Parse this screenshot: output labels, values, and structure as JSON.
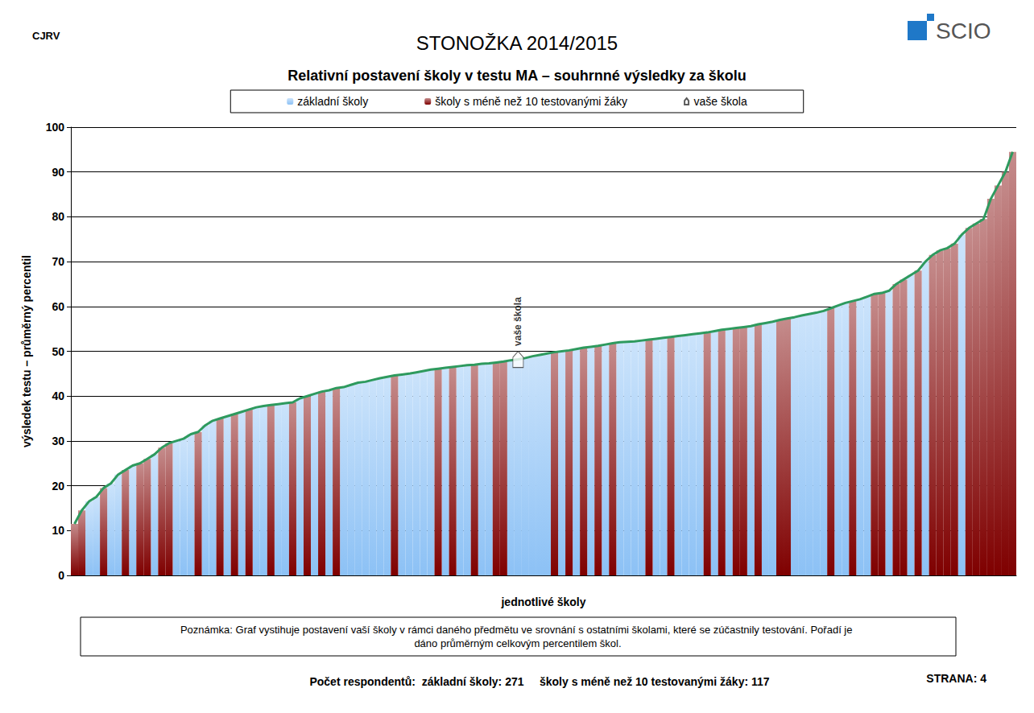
{
  "chart_data": {
    "type": "bar",
    "title": "STONOŽKA 2014/2015",
    "subtitle": "Relativní postavení školy v testu MA – souhrnné výsledky za školu",
    "corner_label": "CJRV",
    "logo": "SCIO",
    "y_label": "výsledek testu – průměrný percentil",
    "x_label": "jednotlivé školy",
    "annotation": "vaše škola",
    "note": "Poznámka: Graf vystihuje postavení vaší školy v rámci daného předmětu ve srovnání s ostatními školami, které se zúčastnily testování. Pořadí je dáno průměrným celkovým percentilem škol.",
    "footer": "Počet respondentů:  základní školy: 271     školy s méně než 10 testovanými žáky: 117",
    "page": "STRANA: 4",
    "ylim": [
      0,
      100
    ],
    "yticks": [
      0,
      10,
      20,
      30,
      40,
      50,
      60,
      70,
      80,
      90,
      100
    ],
    "grid": true,
    "legend": "top",
    "tick_labels": "y",
    "categories": [
      null,
      null,
      null,
      null,
      null,
      null,
      null,
      null,
      null,
      null,
      null,
      null,
      null,
      null,
      null,
      null,
      null,
      null,
      null,
      null,
      null,
      null,
      null,
      null,
      null,
      null,
      null,
      null,
      null,
      null,
      null,
      null,
      null,
      null,
      null,
      null,
      null,
      null,
      null,
      null,
      null,
      null,
      null,
      null,
      null,
      null,
      null,
      null,
      null,
      null,
      null,
      null,
      null,
      null,
      null,
      null,
      null,
      null,
      null,
      null,
      null,
      null,
      null,
      null,
      null,
      null,
      null,
      null,
      null,
      null,
      null,
      null,
      null,
      null,
      null,
      null,
      null,
      null,
      null,
      null,
      null,
      null,
      null,
      null,
      null,
      null,
      null,
      null,
      null,
      null,
      null,
      null,
      null,
      null,
      null,
      null,
      null,
      null,
      null,
      null,
      null,
      null,
      null,
      null,
      null,
      null,
      null,
      null,
      null,
      null,
      null,
      null,
      null,
      null,
      null,
      null,
      null,
      null,
      null,
      null,
      null,
      null,
      null,
      null,
      null,
      null,
      null,
      null,
      null,
      null
    ],
    "series": [
      {
        "name": "základní školy",
        "type": "bar",
        "color": "#8cc1f5",
        "values": [
          null,
          null,
          16.5,
          17.5,
          null,
          20.5,
          22.5,
          null,
          24.5,
          null,
          null,
          27,
          null,
          null,
          30,
          30.5,
          31.5,
          null,
          33.5,
          34.5,
          null,
          35.5,
          null,
          36.5,
          null,
          37.5,
          37.8,
          null,
          38.2,
          38.4,
          null,
          39.5,
          null,
          40.5,
          null,
          41.3,
          null,
          42,
          42.5,
          43,
          43.2,
          43.6,
          44,
          44.3,
          null,
          44.8,
          45,
          45.3,
          45.6,
          45.9,
          null,
          46.3,
          null,
          46.7,
          46.9,
          null,
          47.2,
          47.3,
          null,
          null,
          48,
          48.2,
          48.5,
          48.9,
          49.2,
          49.5,
          null,
          50,
          null,
          50.5,
          null,
          51,
          null,
          51.5,
          null,
          52,
          52.1,
          52.2,
          52.4,
          null,
          52.8,
          53,
          null,
          53.4,
          53.6,
          53.8,
          54,
          null,
          54.5,
          null,
          55,
          null,
          null,
          55.6,
          null,
          56.3,
          56.6,
          null,
          null,
          57.6,
          58,
          58.3,
          58.6,
          59,
          null,
          60.2,
          60.8,
          null,
          61.6,
          62.2,
          null,
          null,
          63.5,
          null,
          null,
          67,
          null,
          70,
          null,
          null,
          null,
          null,
          76,
          null,
          null,
          null,
          null,
          null,
          null,
          null
        ]
      },
      {
        "name": "školy s méně než 10 testovanými žáky",
        "type": "bar",
        "color": "#7f0000",
        "values": [
          11.5,
          14.5,
          null,
          null,
          19.5,
          null,
          null,
          23.5,
          null,
          25,
          26,
          null,
          28.5,
          29.5,
          null,
          null,
          null,
          32,
          null,
          null,
          35,
          null,
          36,
          null,
          37,
          null,
          null,
          38,
          null,
          null,
          38.6,
          null,
          40,
          null,
          41,
          null,
          41.8,
          null,
          null,
          null,
          null,
          null,
          null,
          null,
          44.6,
          null,
          null,
          null,
          null,
          null,
          46.1,
          null,
          46.5,
          null,
          null,
          47,
          null,
          null,
          47.5,
          47.7,
          null,
          null,
          null,
          null,
          null,
          null,
          49.8,
          null,
          50.2,
          null,
          50.8,
          null,
          51.2,
          null,
          51.8,
          null,
          null,
          null,
          null,
          52.6,
          null,
          null,
          53.2,
          null,
          null,
          null,
          null,
          54.2,
          null,
          54.8,
          null,
          55.2,
          55.4,
          null,
          56,
          null,
          null,
          57,
          57.3,
          null,
          null,
          null,
          null,
          null,
          59.6,
          null,
          null,
          61.2,
          null,
          null,
          62.8,
          63,
          null,
          65,
          66,
          null,
          68,
          null,
          71.5,
          72.5,
          73,
          74,
          null,
          77.5,
          78.5,
          79.5,
          84,
          87,
          90,
          94.5
        ]
      },
      {
        "name": "vaše škola",
        "type": "scatter",
        "marker": "pin",
        "color": "#ffffff",
        "values": [
          null,
          null,
          null,
          null,
          null,
          null,
          null,
          null,
          null,
          null,
          null,
          null,
          null,
          null,
          null,
          null,
          null,
          null,
          null,
          null,
          null,
          null,
          null,
          null,
          null,
          null,
          null,
          null,
          null,
          null,
          null,
          null,
          null,
          null,
          null,
          null,
          null,
          null,
          null,
          null,
          null,
          null,
          null,
          null,
          null,
          null,
          null,
          null,
          null,
          null,
          null,
          null,
          null,
          null,
          null,
          null,
          null,
          null,
          null,
          null,
          null,
          48.2,
          null,
          null,
          null,
          null,
          null,
          null,
          null,
          null,
          null,
          null,
          null,
          null,
          null,
          null,
          null,
          null,
          null,
          null,
          null,
          null,
          null,
          null,
          null,
          null,
          null,
          null,
          null,
          null,
          null,
          null,
          null,
          null,
          null,
          null,
          null,
          null,
          null,
          null,
          null,
          null,
          null,
          null,
          null,
          null,
          null,
          null,
          null,
          null,
          null,
          null,
          null,
          null,
          null,
          null,
          null,
          null,
          null,
          null,
          null,
          null,
          null,
          null,
          null,
          null,
          null,
          null,
          null,
          null
        ]
      }
    ]
  }
}
